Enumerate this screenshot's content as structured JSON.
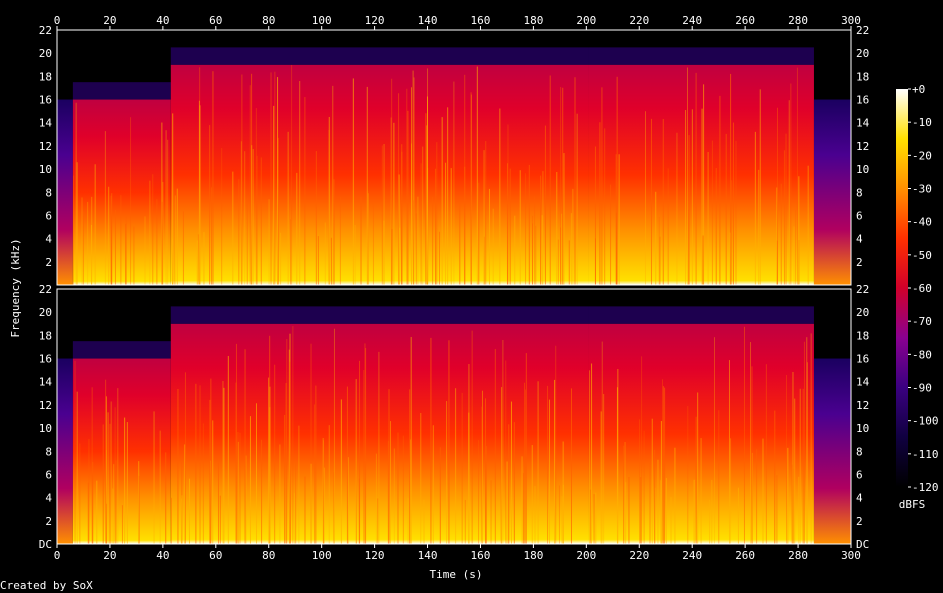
{
  "chart_data": {
    "type": "heatmap",
    "title": "",
    "xlabel": "Time (s)",
    "ylabel": "Frequency (kHz)",
    "xlim": [
      0,
      300
    ],
    "ylim": [
      0,
      22
    ],
    "x_ticks": [
      "0",
      "20",
      "40",
      "60",
      "80",
      "100",
      "120",
      "140",
      "160",
      "180",
      "200",
      "220",
      "240",
      "260",
      "280",
      "300"
    ],
    "y_ticks_top_channel": [
      "2",
      "4",
      "6",
      "8",
      "10",
      "12",
      "14",
      "16",
      "18",
      "20",
      "22"
    ],
    "y_ticks_bottom_channel": [
      "DC",
      "2",
      "4",
      "6",
      "8",
      "10",
      "12",
      "14",
      "16",
      "18",
      "20",
      "22"
    ],
    "channels": 2,
    "colorbar": {
      "label": "dBFS",
      "ticks": [
        "+0",
        "-10",
        "-20",
        "-30",
        "-40",
        "-50",
        "-60",
        "-70",
        "-80",
        "-90",
        "-100",
        "-110",
        "-120"
      ],
      "range": [
        -120,
        0
      ],
      "colors": [
        "#000000",
        "#100040",
        "#3a0080",
        "#8a0090",
        "#d0002a",
        "#ff3000",
        "#ff9000",
        "#ffe000",
        "#ffffff"
      ]
    },
    "series": [
      {
        "segments": [
          {
            "t": [
              0,
              6
            ],
            "cutoff_khz": 16,
            "level_db": -95
          },
          {
            "t": [
              6,
              43
            ],
            "cutoff_khz": 16,
            "level_db": -55
          },
          {
            "t": [
              43,
              201
            ],
            "cutoff_khz": 19,
            "level_db": -50
          },
          {
            "t": [
              201,
              286
            ],
            "cutoff_khz": 19,
            "level_db": -55
          },
          {
            "t": [
              286,
              300
            ],
            "cutoff_khz": 16,
            "level_db": -100
          }
        ]
      },
      {
        "segments": [
          {
            "t": [
              0,
              6
            ],
            "cutoff_khz": 16,
            "level_db": -95
          },
          {
            "t": [
              6,
              43
            ],
            "cutoff_khz": 16,
            "level_db": -55
          },
          {
            "t": [
              43,
              201
            ],
            "cutoff_khz": 19,
            "level_db": -50
          },
          {
            "t": [
              201,
              286
            ],
            "cutoff_khz": 19,
            "level_db": -55
          },
          {
            "t": [
              286,
              300
            ],
            "cutoff_khz": 16,
            "level_db": -100
          }
        ]
      }
    ],
    "credit": "Created by SoX"
  }
}
